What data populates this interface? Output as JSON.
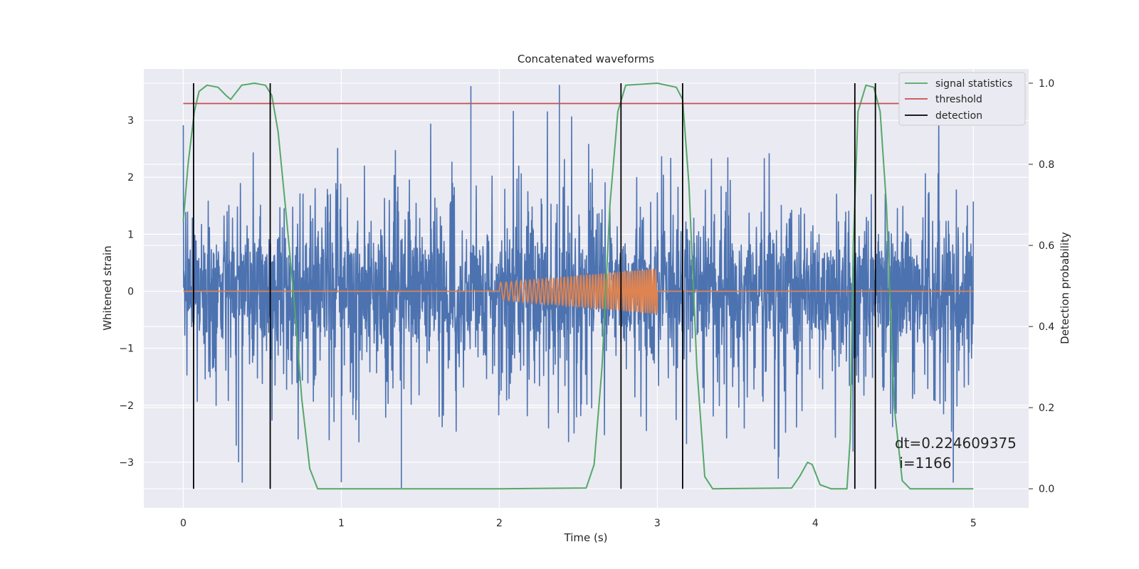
{
  "chart_data": {
    "type": "line",
    "title": "Concatenated waveforms",
    "xlabel": "Time (s)",
    "ylabel": "Whitened strain",
    "y2label": "Detection probability",
    "xlim": [
      -0.25,
      5.35
    ],
    "ylim": [
      -3.8,
      3.9
    ],
    "y2lim": [
      -0.047,
      1.035
    ],
    "x_ticks": [
      0,
      1,
      2,
      3,
      4,
      5
    ],
    "y_ticks": [
      3,
      2,
      1,
      0,
      -1,
      -2,
      -3
    ],
    "y_tick_labels": [
      "3",
      "2",
      "1",
      "0",
      "−1",
      "−2",
      "−3"
    ],
    "y2_ticks": [
      1.0,
      0.8,
      0.6,
      0.4,
      0.2,
      0.0
    ],
    "y2_tick_labels": [
      "1.0",
      "0.8",
      "0.6",
      "0.4",
      "0.2",
      "0.0"
    ],
    "grid": true,
    "legend_position": "top-right",
    "series": [
      {
        "name": "",
        "kind": "noise",
        "axis": "left",
        "color": "#4c72b0",
        "x_range": [
          0,
          5
        ],
        "core_amplitude": 0.78,
        "spikes": [
          [
            1.82,
            3.6
          ],
          [
            2.38,
            3.62
          ],
          [
            1.38,
            -3.45
          ],
          [
            1.0,
            -3.35
          ],
          [
            0.35,
            -3.0
          ]
        ]
      },
      {
        "name": "",
        "kind": "chirp",
        "axis": "left",
        "color": "#dd8452",
        "x_range": [
          0,
          5
        ],
        "chirp_range": [
          2.0,
          3.0
        ],
        "amplitude_start": 0.15,
        "amplitude_end": 0.4
      },
      {
        "name": "signal statistics",
        "kind": "line",
        "axis": "right",
        "color": "#55a868",
        "points": [
          [
            0,
            0.66
          ],
          [
            0.03,
            0.8
          ],
          [
            0.07,
            0.93
          ],
          [
            0.1,
            0.98
          ],
          [
            0.15,
            0.995
          ],
          [
            0.22,
            0.99
          ],
          [
            0.27,
            0.97
          ],
          [
            0.3,
            0.96
          ],
          [
            0.33,
            0.975
          ],
          [
            0.37,
            0.995
          ],
          [
            0.45,
            1.0
          ],
          [
            0.52,
            0.995
          ],
          [
            0.56,
            0.97
          ],
          [
            0.6,
            0.88
          ],
          [
            0.65,
            0.68
          ],
          [
            0.7,
            0.47
          ],
          [
            0.75,
            0.22
          ],
          [
            0.8,
            0.05
          ],
          [
            0.85,
            0.0
          ],
          [
            1.0,
            0.0
          ],
          [
            2.0,
            0.0
          ],
          [
            2.55,
            0.002
          ],
          [
            2.6,
            0.06
          ],
          [
            2.65,
            0.3
          ],
          [
            2.7,
            0.7
          ],
          [
            2.75,
            0.93
          ],
          [
            2.8,
            0.995
          ],
          [
            3.0,
            1.0
          ],
          [
            3.12,
            0.99
          ],
          [
            3.16,
            0.96
          ],
          [
            3.2,
            0.75
          ],
          [
            3.25,
            0.3
          ],
          [
            3.3,
            0.03
          ],
          [
            3.35,
            0.0
          ],
          [
            3.85,
            0.002
          ],
          [
            3.9,
            0.03
          ],
          [
            3.95,
            0.065
          ],
          [
            3.98,
            0.06
          ],
          [
            4.03,
            0.01
          ],
          [
            4.1,
            0.0
          ],
          [
            4.2,
            0.0
          ],
          [
            4.22,
            0.12
          ],
          [
            4.24,
            0.6
          ],
          [
            4.27,
            0.93
          ],
          [
            4.32,
            0.995
          ],
          [
            4.37,
            0.99
          ],
          [
            4.41,
            0.93
          ],
          [
            4.45,
            0.7
          ],
          [
            4.5,
            0.2
          ],
          [
            4.55,
            0.02
          ],
          [
            4.6,
            0.0
          ],
          [
            5.0,
            0.0
          ]
        ]
      },
      {
        "name": "threshold",
        "kind": "hline",
        "axis": "right",
        "color": "#c44e52",
        "y": 0.95,
        "x_range": [
          0,
          5.1
        ]
      },
      {
        "name": "detection",
        "kind": "vlines",
        "axis": "right",
        "color": "#000000",
        "x": [
          0.065,
          0.55,
          2.77,
          3.16,
          4.25,
          4.38
        ],
        "y_range": [
          0.0,
          1.0
        ]
      }
    ],
    "annotations": [
      "dt=0.224609375",
      " i=1166"
    ]
  }
}
